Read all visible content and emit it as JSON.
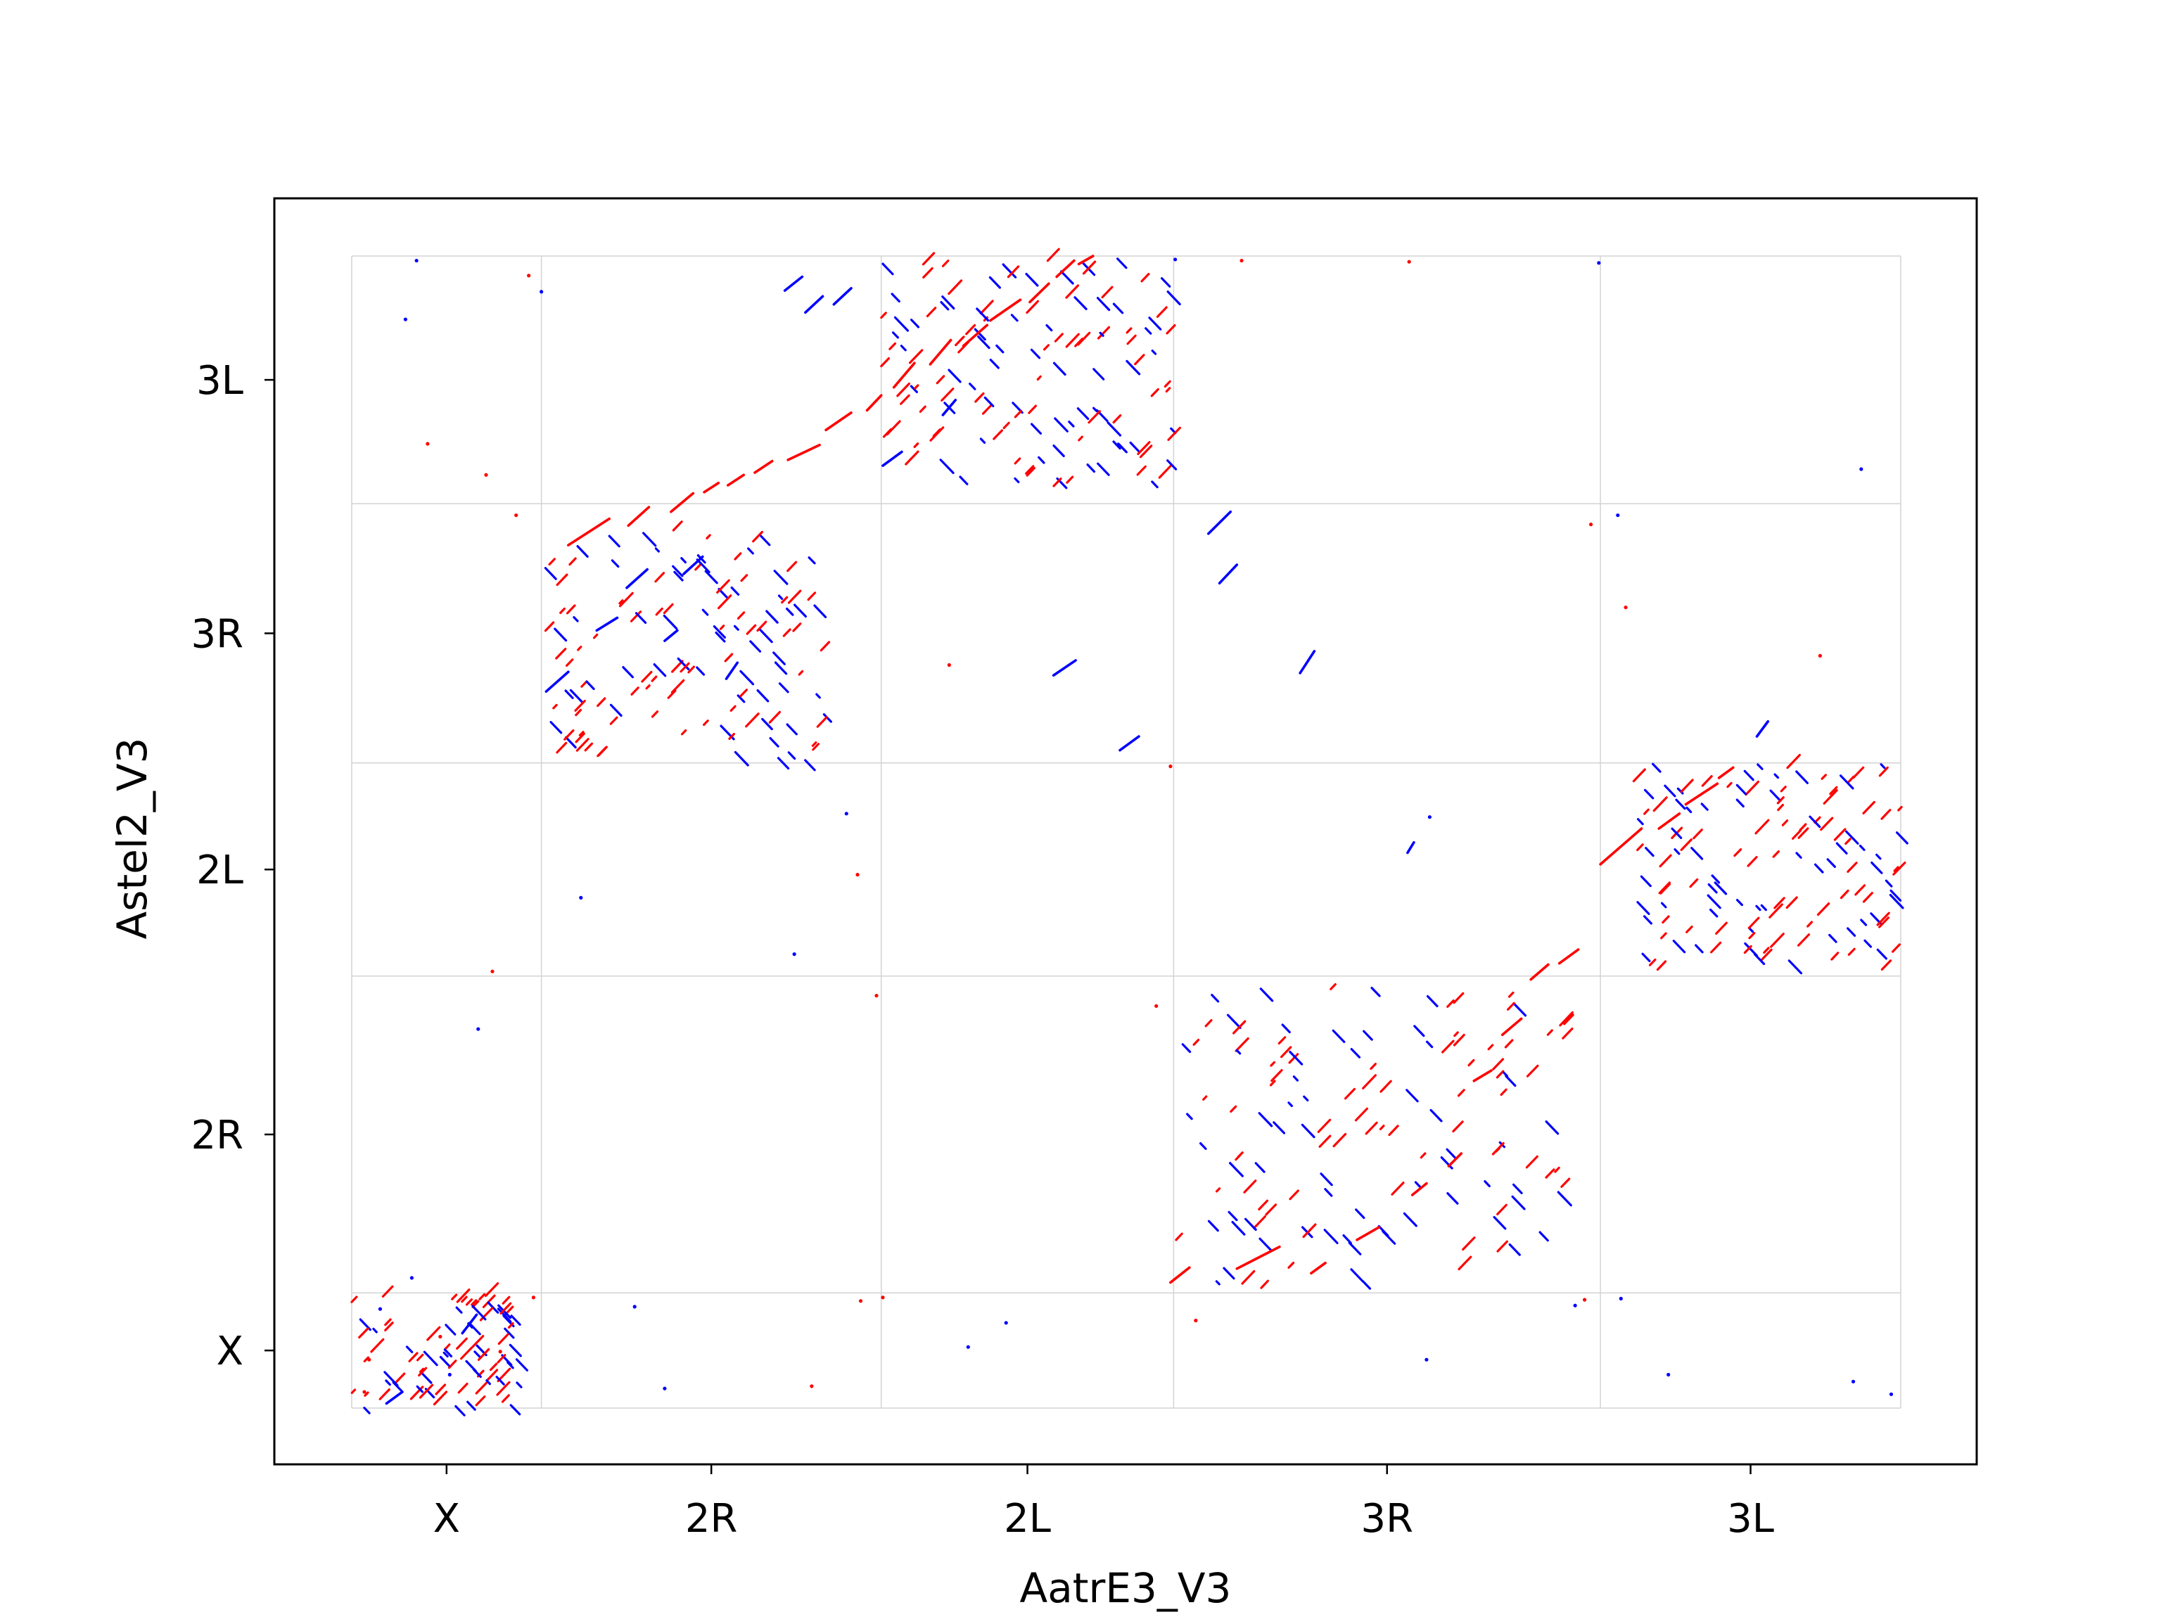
{
  "chart_data": {
    "type": "scatter",
    "subtype": "dot-plot",
    "title": "",
    "xlabel": "AatrE3_V3",
    "ylabel": "Astel2_V3",
    "grid": true,
    "colors": {
      "forward": "#ff0000",
      "reverse": "#0000ff",
      "grid": "#d3d3d3",
      "frame": "#000000"
    },
    "x_chromosomes": [
      {
        "name": "X",
        "start": 0,
        "end": 12
      },
      {
        "name": "2R",
        "start": 12,
        "end": 33.5
      },
      {
        "name": "2L",
        "start": 33.5,
        "end": 52
      },
      {
        "name": "3R",
        "start": 52,
        "end": 79
      },
      {
        "name": "3L",
        "start": 79,
        "end": 98
      }
    ],
    "y_chromosomes": [
      {
        "name": "X",
        "start": 0,
        "end": 10
      },
      {
        "name": "2R",
        "start": 10,
        "end": 37.5
      },
      {
        "name": "2L",
        "start": 37.5,
        "end": 56
      },
      {
        "name": "3R",
        "start": 56,
        "end": 78.5
      },
      {
        "name": "3L",
        "start": 78.5,
        "end": 100
      }
    ],
    "xlim": [
      0,
      98
    ],
    "ylim": [
      0,
      100
    ],
    "segments": [
      {
        "x": [
          13.7,
          16.3
        ],
        "y": [
          74.9,
          77.2
        ],
        "strand": "+"
      },
      {
        "x": [
          17.5,
          18.8
        ],
        "y": [
          76.6,
          78.2
        ],
        "strand": "+"
      },
      {
        "x": [
          20.2,
          21.6
        ],
        "y": [
          77.8,
          79.4
        ],
        "strand": "+"
      },
      {
        "x": [
          22.3,
          23.2
        ],
        "y": [
          79.5,
          80.3
        ],
        "strand": "+"
      },
      {
        "x": [
          23.8,
          24.8
        ],
        "y": [
          80.1,
          81.0
        ],
        "strand": "+"
      },
      {
        "x": [
          25.5,
          26.6
        ],
        "y": [
          81.2,
          82.2
        ],
        "strand": "+"
      },
      {
        "x": [
          27.6,
          29.6
        ],
        "y": [
          82.3,
          83.6
        ],
        "strand": "+"
      },
      {
        "x": [
          30.0,
          31.6
        ],
        "y": [
          84.9,
          86.4
        ],
        "strand": "+"
      },
      {
        "x": [
          32.6,
          33.5
        ],
        "y": [
          86.6,
          87.9
        ],
        "strand": "+"
      },
      {
        "x": [
          34.3,
          35.6
        ],
        "y": [
          88.6,
          90.7
        ],
        "strand": "+"
      },
      {
        "x": [
          36.6,
          37.9
        ],
        "y": [
          90.6,
          92.7
        ],
        "strand": "+"
      },
      {
        "x": [
          38.7,
          40.2
        ],
        "y": [
          92.2,
          94.0
        ],
        "strand": "+"
      },
      {
        "x": [
          40.4,
          42.3
        ],
        "y": [
          94.4,
          96.2
        ],
        "strand": "+"
      },
      {
        "x": [
          42.9,
          44.1
        ],
        "y": [
          96.0,
          97.6
        ],
        "strand": "+"
      },
      {
        "x": [
          44.6,
          45.7
        ],
        "y": [
          98.2,
          99.6
        ],
        "strand": "+"
      },
      {
        "x": [
          46.0,
          46.9
        ],
        "y": [
          99.3,
          100.0
        ],
        "strand": "+"
      },
      {
        "x": [
          51.8,
          53.0
        ],
        "y": [
          10.9,
          12.2
        ],
        "strand": "+"
      },
      {
        "x": [
          56.0,
          58.7
        ],
        "y": [
          12.1,
          14.0
        ],
        "strand": "+"
      },
      {
        "x": [
          60.7,
          61.6
        ],
        "y": [
          11.7,
          12.6
        ],
        "strand": "+"
      },
      {
        "x": [
          63.6,
          65.0
        ],
        "y": [
          14.6,
          15.7
        ],
        "strand": "+"
      },
      {
        "x": [
          67.1,
          68.0
        ],
        "y": [
          18.5,
          19.5
        ],
        "strand": "+"
      },
      {
        "x": [
          69.4,
          70.2
        ],
        "y": [
          21.0,
          22.1
        ],
        "strand": "+"
      },
      {
        "x": [
          71.0,
          72.1
        ],
        "y": [
          28.4,
          29.3
        ],
        "strand": "+"
      },
      {
        "x": [
          72.8,
          74.0
        ],
        "y": [
          32.4,
          33.8
        ],
        "strand": "+"
      },
      {
        "x": [
          74.6,
          75.7
        ],
        "y": [
          37.2,
          38.5
        ],
        "strand": "+"
      },
      {
        "x": [
          76.4,
          77.6
        ],
        "y": [
          38.6,
          39.8
        ],
        "strand": "+"
      },
      {
        "x": [
          79.0,
          81.6
        ],
        "y": [
          47.2,
          50.3
        ],
        "strand": "+"
      },
      {
        "x": [
          82.7,
          84.0
        ],
        "y": [
          50.3,
          51.6
        ],
        "strand": "+"
      },
      {
        "x": [
          84.4,
          86.4
        ],
        "y": [
          52.4,
          54.2
        ],
        "strand": "+"
      },
      {
        "x": [
          86.5,
          87.4
        ],
        "y": [
          54.7,
          55.6
        ],
        "strand": "+"
      },
      {
        "x": [
          88.9,
          89.6
        ],
        "y": [
          58.3,
          59.6
        ],
        "strand": "-"
      },
      {
        "x": [
          66.8,
          67.2
        ],
        "y": [
          48.2,
          49.1
        ],
        "strand": "-"
      },
      {
        "x": [
          60.0,
          60.9
        ],
        "y": [
          63.8,
          65.7
        ],
        "strand": "-"
      },
      {
        "x": [
          54.2,
          55.6
        ],
        "y": [
          75.9,
          77.8
        ],
        "strand": "-"
      },
      {
        "x": [
          54.9,
          56.0
        ],
        "y": [
          71.6,
          73.2
        ],
        "strand": "-"
      },
      {
        "x": [
          48.6,
          49.8
        ],
        "y": [
          57.1,
          58.3
        ],
        "strand": "-"
      },
      {
        "x": [
          44.4,
          45.8
        ],
        "y": [
          63.6,
          64.9
        ],
        "strand": "-"
      },
      {
        "x": [
          37.4,
          38.2
        ],
        "y": [
          86.2,
          87.5
        ],
        "strand": "-"
      },
      {
        "x": [
          33.6,
          34.8
        ],
        "y": [
          81.8,
          83.0
        ],
        "strand": "-"
      },
      {
        "x": [
          28.7,
          29.8
        ],
        "y": [
          95.1,
          96.5
        ],
        "strand": "-"
      },
      {
        "x": [
          23.7,
          24.4
        ],
        "y": [
          63.3,
          64.7
        ],
        "strand": "-"
      },
      {
        "x": [
          19.8,
          20.6
        ],
        "y": [
          66.6,
          67.5
        ],
        "strand": "-"
      },
      {
        "x": [
          12.3,
          13.7
        ],
        "y": [
          62.2,
          63.9
        ],
        "strand": "-"
      },
      {
        "x": [
          15.5,
          16.8
        ],
        "y": [
          67.5,
          68.6
        ],
        "strand": "-"
      },
      {
        "x": [
          17.4,
          18.7
        ],
        "y": [
          71.2,
          72.8
        ],
        "strand": "-"
      },
      {
        "x": [
          21.0,
          22.2
        ],
        "y": [
          72.4,
          73.9
        ],
        "strand": "-"
      },
      {
        "x": [
          7.0,
          7.9
        ],
        "y": [
          6.5,
          8.1
        ],
        "strand": "-"
      },
      {
        "x": [
          2.2,
          3.2
        ],
        "y": [
          0.4,
          1.4
        ],
        "strand": "-"
      },
      {
        "x": [
          27.4,
          28.5
        ],
        "y": [
          97.0,
          98.2
        ],
        "strand": "-"
      },
      {
        "x": [
          30.5,
          31.6
        ],
        "y": [
          95.8,
          97.2
        ],
        "strand": "-"
      }
    ],
    "dots": [
      {
        "x": 4.1,
        "y": 99.6,
        "strand": "-"
      },
      {
        "x": 3.4,
        "y": 94.5,
        "strand": "-"
      },
      {
        "x": 4.8,
        "y": 83.7,
        "strand": "+"
      },
      {
        "x": 8.5,
        "y": 81.0,
        "strand": "+"
      },
      {
        "x": 10.4,
        "y": 77.5,
        "strand": "+"
      },
      {
        "x": 11.2,
        "y": 98.3,
        "strand": "+"
      },
      {
        "x": 12.0,
        "y": 96.9,
        "strand": "-"
      },
      {
        "x": 8.0,
        "y": 32.9,
        "strand": "-"
      },
      {
        "x": 8.9,
        "y": 37.9,
        "strand": "+"
      },
      {
        "x": 1.1,
        "y": 4.2,
        "strand": "+"
      },
      {
        "x": 1.8,
        "y": 8.6,
        "strand": "-"
      },
      {
        "x": 3.8,
        "y": 11.3,
        "strand": "-"
      },
      {
        "x": 5.6,
        "y": 6.2,
        "strand": "+"
      },
      {
        "x": 6.2,
        "y": 2.9,
        "strand": "-"
      },
      {
        "x": 0.8,
        "y": 1.4,
        "strand": "+"
      },
      {
        "x": 9.4,
        "y": 4.9,
        "strand": "+"
      },
      {
        "x": 11.5,
        "y": 9.6,
        "strand": "+"
      },
      {
        "x": 14.5,
        "y": 44.3,
        "strand": "-"
      },
      {
        "x": 17.9,
        "y": 8.8,
        "strand": "-"
      },
      {
        "x": 19.8,
        "y": 1.7,
        "strand": "-"
      },
      {
        "x": 28.0,
        "y": 39.4,
        "strand": "-"
      },
      {
        "x": 29.1,
        "y": 1.9,
        "strand": "+"
      },
      {
        "x": 31.3,
        "y": 51.6,
        "strand": "-"
      },
      {
        "x": 32.0,
        "y": 46.3,
        "strand": "+"
      },
      {
        "x": 33.2,
        "y": 35.8,
        "strand": "+"
      },
      {
        "x": 33.6,
        "y": 9.6,
        "strand": "+"
      },
      {
        "x": 37.8,
        "y": 64.5,
        "strand": "+"
      },
      {
        "x": 39.0,
        "y": 5.3,
        "strand": "-"
      },
      {
        "x": 41.4,
        "y": 7.4,
        "strand": "-"
      },
      {
        "x": 50.9,
        "y": 34.9,
        "strand": "+"
      },
      {
        "x": 51.8,
        "y": 55.7,
        "strand": "+"
      },
      {
        "x": 52.1,
        "y": 99.7,
        "strand": "-"
      },
      {
        "x": 53.4,
        "y": 7.6,
        "strand": "+"
      },
      {
        "x": 56.3,
        "y": 99.6,
        "strand": "+"
      },
      {
        "x": 66.9,
        "y": 99.5,
        "strand": "+"
      },
      {
        "x": 68.0,
        "y": 4.2,
        "strand": "-"
      },
      {
        "x": 68.2,
        "y": 51.3,
        "strand": "-"
      },
      {
        "x": 78.9,
        "y": 99.4,
        "strand": "-"
      },
      {
        "x": 78.4,
        "y": 76.7,
        "strand": "+"
      },
      {
        "x": 80.1,
        "y": 77.5,
        "strand": "-"
      },
      {
        "x": 80.3,
        "y": 9.5,
        "strand": "-"
      },
      {
        "x": 80.6,
        "y": 69.5,
        "strand": "+"
      },
      {
        "x": 83.3,
        "y": 2.9,
        "strand": "-"
      },
      {
        "x": 92.9,
        "y": 65.3,
        "strand": "+"
      },
      {
        "x": 95.5,
        "y": 81.5,
        "strand": "-"
      },
      {
        "x": 95.0,
        "y": 2.3,
        "strand": "-"
      },
      {
        "x": 97.4,
        "y": 1.2,
        "strand": "-"
      },
      {
        "x": 77.4,
        "y": 8.9,
        "strand": "-"
      },
      {
        "x": 78.0,
        "y": 9.4,
        "strand": "+"
      },
      {
        "x": 32.2,
        "y": 9.3,
        "strand": "+"
      }
    ],
    "blocks": [
      {
        "name": "X-X",
        "x": [
          0,
          10.5
        ],
        "y": [
          0,
          10
        ]
      },
      {
        "name": "2R-3R",
        "x": [
          12,
          30
        ],
        "y": [
          56,
          76.5
        ]
      },
      {
        "name": "2L-3L",
        "x": [
          33.5,
          52
        ],
        "y": [
          80,
          100
        ]
      },
      {
        "name": "3R-2R",
        "x": [
          52,
          77
        ],
        "y": [
          10,
          37.5
        ]
      },
      {
        "name": "3L-2L",
        "x": [
          81,
          98
        ],
        "y": [
          38,
          56
        ]
      }
    ]
  }
}
